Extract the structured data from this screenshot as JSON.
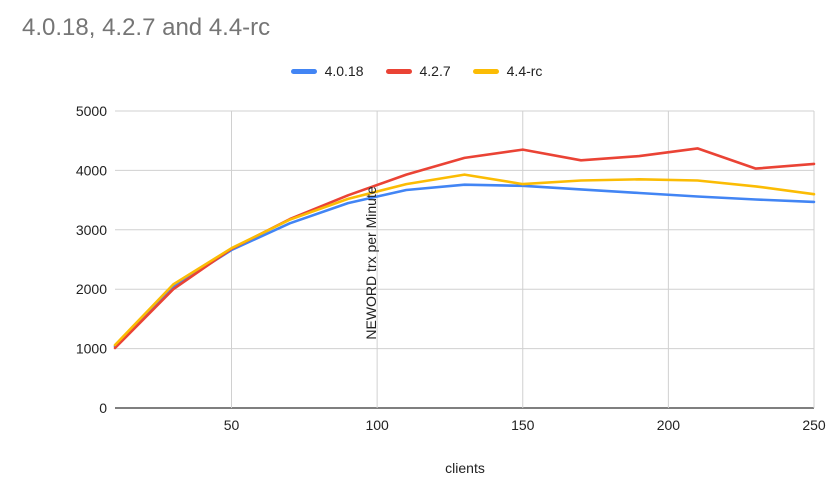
{
  "chart_data": {
    "type": "line",
    "title": "4.0.18, 4.2.7 and 4.4-rc",
    "xlabel": "clients",
    "ylabel": "NEWORD trx per Minute",
    "xlim": [
      10,
      250
    ],
    "ylim": [
      0,
      5000
    ],
    "xticks": [
      50,
      100,
      150,
      200,
      250
    ],
    "yticks": [
      0,
      1000,
      2000,
      3000,
      4000,
      5000
    ],
    "grid": true,
    "legend": "top",
    "x": [
      10,
      30,
      50,
      70,
      90,
      110,
      130,
      150,
      170,
      190,
      210,
      230,
      250
    ],
    "series": [
      {
        "name": "4.0.18",
        "color": "#4285f4",
        "values": [
          1040,
          2040,
          2660,
          3110,
          3450,
          3670,
          3760,
          3740,
          3680,
          3620,
          3560,
          3510,
          3470
        ]
      },
      {
        "name": "4.2.7",
        "color": "#ea4335",
        "values": [
          1010,
          2000,
          2680,
          3180,
          3580,
          3930,
          4210,
          4350,
          4170,
          4240,
          4370,
          4030,
          4110
        ]
      },
      {
        "name": "4.4-rc",
        "color": "#fbbc04",
        "values": [
          1060,
          2080,
          2690,
          3170,
          3520,
          3770,
          3930,
          3770,
          3830,
          3850,
          3830,
          3730,
          3600
        ]
      }
    ]
  }
}
